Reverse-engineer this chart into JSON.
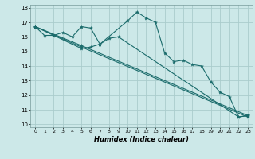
{
  "title": "",
  "xlabel": "Humidex (Indice chaleur)",
  "bg_color": "#cce8e8",
  "grid_color": "#aacccc",
  "line_color": "#1a6b6b",
  "xlim": [
    -0.5,
    23.5
  ],
  "ylim": [
    9.8,
    18.2
  ],
  "yticks": [
    10,
    11,
    12,
    13,
    14,
    15,
    16,
    17,
    18
  ],
  "xticks": [
    0,
    1,
    2,
    3,
    4,
    5,
    6,
    7,
    8,
    9,
    10,
    11,
    12,
    13,
    14,
    15,
    16,
    17,
    18,
    19,
    20,
    21,
    22,
    23
  ],
  "series": [
    {
      "x": [
        0,
        1,
        2,
        3,
        4,
        5,
        6,
        7,
        10,
        11,
        12,
        13,
        14,
        15,
        16,
        17,
        18,
        19,
        20,
        21,
        22,
        23
      ],
      "y": [
        16.7,
        16.1,
        16.1,
        16.3,
        16.0,
        16.7,
        16.6,
        15.5,
        17.1,
        17.7,
        17.3,
        17.0,
        14.9,
        14.3,
        14.4,
        14.1,
        14.0,
        12.9,
        12.2,
        11.9,
        10.5,
        10.6
      ]
    },
    {
      "x": [
        0,
        5,
        23
      ],
      "y": [
        16.7,
        15.4,
        10.6
      ]
    },
    {
      "x": [
        0,
        5,
        23
      ],
      "y": [
        16.7,
        15.3,
        10.5
      ]
    },
    {
      "x": [
        0,
        5,
        6,
        7,
        8,
        9,
        22,
        23
      ],
      "y": [
        16.7,
        15.2,
        15.3,
        15.5,
        15.9,
        16.0,
        10.5,
        10.6
      ]
    }
  ]
}
